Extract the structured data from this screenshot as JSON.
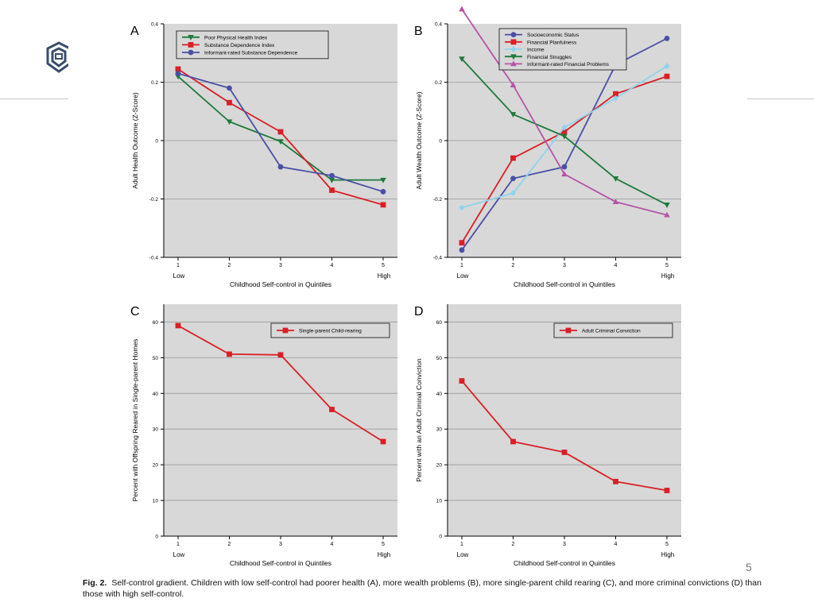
{
  "slide": {
    "number": "5"
  },
  "caption": {
    "label": "Fig. 2.",
    "text": "Self-control gradient. Children with low self-control had poorer health (A), more wealth problems (B), more single-parent child rearing (C), and more criminal convictions (D) than those with high self-control."
  },
  "colors": {
    "plot_background": "#d8d8d8",
    "gridline": "#a8a8a8",
    "green": "#1f7a3c",
    "red": "#d91f26",
    "blue": "#4a4fa6",
    "light_blue": "#8fd3ec",
    "magenta": "#b553a8"
  },
  "chart_data": [
    {
      "panel": "A",
      "type": "line",
      "x": [
        1,
        2,
        3,
        4,
        5
      ],
      "xtick_labels": [
        "1",
        "2",
        "3",
        "4",
        "5"
      ],
      "x_end_labels": [
        "Low",
        "High"
      ],
      "xlabel": "Childhood Self-control in Quintiles",
      "ylabel": "Adult Health Outcome (Z-Score)",
      "ylim": [
        -0.4,
        0.4
      ],
      "yticks": [
        -0.4,
        -0.2,
        0,
        0.2,
        0.4
      ],
      "ytick_labels": [
        "-0.4",
        "-0.2",
        "0",
        "0.2",
        "0.4"
      ],
      "grid": true,
      "legend_position": "top-left",
      "series": [
        {
          "name": "Poor Physical Health Index",
          "color": "#1f7a3c",
          "marker": "triangle-down",
          "values": [
            0.22,
            0.065,
            -0.003,
            -0.135,
            -0.135
          ]
        },
        {
          "name": "Substance Dependence Index",
          "color": "#d91f26",
          "marker": "square",
          "values": [
            0.245,
            0.13,
            0.03,
            -0.17,
            -0.22
          ]
        },
        {
          "name": "Informant-rated Substance Dependence",
          "color": "#4a4fa6",
          "marker": "circle",
          "values": [
            0.23,
            0.18,
            -0.09,
            -0.12,
            -0.175
          ]
        }
      ]
    },
    {
      "panel": "B",
      "type": "line",
      "x": [
        1,
        2,
        3,
        4,
        5
      ],
      "xtick_labels": [
        "1",
        "2",
        "3",
        "4",
        "5"
      ],
      "x_end_labels": [
        "Low",
        "High"
      ],
      "xlabel": "Childhood Self-control in Quintiles",
      "ylabel": "Adult Wealth Outcome (Z-Score)",
      "ylim": [
        -0.4,
        0.4
      ],
      "yticks": [
        -0.4,
        -0.2,
        0,
        0.2,
        0.4
      ],
      "ytick_labels": [
        "-0.4",
        "-0.2",
        "0",
        "0.2",
        "0.4"
      ],
      "grid": true,
      "legend_position": "top-left",
      "series": [
        {
          "name": "Socioeconomic Status",
          "color": "#4a4fa6",
          "marker": "circle",
          "values": [
            -0.375,
            -0.13,
            -0.09,
            0.26,
            0.35
          ]
        },
        {
          "name": "Financial Planfulness",
          "color": "#d91f26",
          "marker": "square",
          "values": [
            -0.35,
            -0.06,
            0.03,
            0.16,
            0.22
          ]
        },
        {
          "name": "Income",
          "color": "#8fd3ec",
          "marker": "diamond",
          "values": [
            -0.23,
            -0.18,
            0.045,
            0.145,
            0.255
          ]
        },
        {
          "name": "Financial Struggles",
          "color": "#1f7a3c",
          "marker": "triangle-down",
          "values": [
            0.28,
            0.09,
            0.015,
            -0.13,
            -0.22
          ]
        },
        {
          "name": "Informant-rated Financial Problems",
          "color": "#b553a8",
          "marker": "triangle-up",
          "values": [
            0.45,
            0.19,
            -0.115,
            -0.21,
            -0.255
          ]
        }
      ]
    },
    {
      "panel": "C",
      "type": "line",
      "x": [
        1,
        2,
        3,
        4,
        5
      ],
      "xtick_labels": [
        "1",
        "2",
        "3",
        "4",
        "5"
      ],
      "x_end_labels": [
        "Low",
        "High"
      ],
      "xlabel": "Childhood Self-control in Quintiles",
      "ylabel": "Percent with Offspring Reared in Single-parent Homes",
      "ylim": [
        0,
        65
      ],
      "yticks": [
        0,
        10,
        20,
        30,
        40,
        50,
        60
      ],
      "ytick_labels": [
        "0",
        "10",
        "20",
        "30",
        "40",
        "50",
        "60"
      ],
      "grid": true,
      "legend_position": "top-right",
      "series": [
        {
          "name": "Single-parent Child-rearing",
          "color": "#d91f26",
          "marker": "square",
          "values": [
            59,
            51,
            50.8,
            35.5,
            26.5
          ]
        }
      ]
    },
    {
      "panel": "D",
      "type": "line",
      "x": [
        1,
        2,
        3,
        4,
        5
      ],
      "xtick_labels": [
        "1",
        "2",
        "3",
        "4",
        "5"
      ],
      "x_end_labels": [
        "Low",
        "High"
      ],
      "xlabel": "Childhood Self-control in Quintiles",
      "ylabel": "Percent with an Adult Criminal Conviction",
      "ylim": [
        0,
        65
      ],
      "yticks": [
        0,
        10,
        20,
        30,
        40,
        50,
        60
      ],
      "ytick_labels": [
        "0",
        "10",
        "20",
        "30",
        "40",
        "50",
        "60"
      ],
      "grid": true,
      "legend_position": "top-right",
      "series": [
        {
          "name": "Adult Criminal Conviction",
          "color": "#d91f26",
          "marker": "square",
          "values": [
            43.5,
            26.5,
            23.5,
            15.3,
            12.8
          ]
        }
      ]
    }
  ]
}
